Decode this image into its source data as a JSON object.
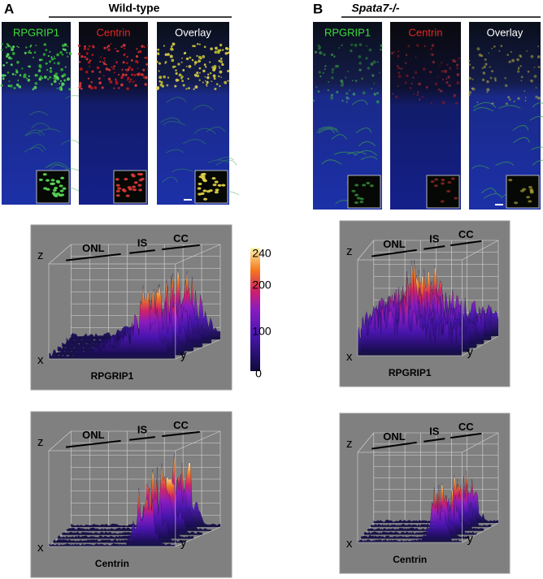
{
  "panels": [
    {
      "label": "A",
      "title": "Wild-type",
      "images": [
        "RPGRIP1",
        "Centrin",
        "Overlay"
      ],
      "plots": [
        {
          "regions": [
            "ONL",
            "IS",
            "CC"
          ],
          "axes": [
            "z",
            "x",
            "y"
          ],
          "caption": "RPGRIP1"
        },
        {
          "regions": [
            "ONL",
            "IS",
            "CC"
          ],
          "axes": [
            "z",
            "x",
            "y"
          ],
          "caption": "Centrin"
        }
      ]
    },
    {
      "label": "B",
      "title": "Spata7-/-",
      "images": [
        "RPGRIP1",
        "Centrin",
        "Overlay"
      ],
      "plots": [
        {
          "regions": [
            "ONL",
            "IS",
            "CC"
          ],
          "axes": [
            "z",
            "x",
            "y"
          ],
          "caption": "RPGRIP1"
        },
        {
          "regions": [
            "ONL",
            "IS",
            "CC"
          ],
          "axes": [
            "z",
            "x",
            "y"
          ],
          "caption": "Centrin"
        }
      ]
    }
  ],
  "colorbar": {
    "ticks": [
      240,
      200,
      100,
      0
    ]
  }
}
